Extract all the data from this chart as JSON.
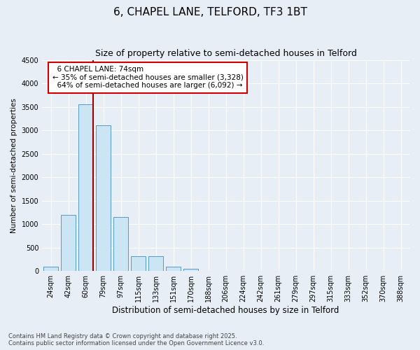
{
  "title": "6, CHAPEL LANE, TELFORD, TF3 1BT",
  "subtitle": "Size of property relative to semi-detached houses in Telford",
  "xlabel": "Distribution of semi-detached houses by size in Telford",
  "ylabel": "Number of semi-detached properties",
  "footnote": "Contains HM Land Registry data © Crown copyright and database right 2025.\nContains public sector information licensed under the Open Government Licence v3.0.",
  "bar_labels": [
    "24sqm",
    "42sqm",
    "60sqm",
    "79sqm",
    "97sqm",
    "115sqm",
    "133sqm",
    "151sqm",
    "170sqm",
    "188sqm",
    "206sqm",
    "224sqm",
    "242sqm",
    "261sqm",
    "279sqm",
    "297sqm",
    "315sqm",
    "333sqm",
    "352sqm",
    "370sqm",
    "388sqm"
  ],
  "bar_values": [
    100,
    1200,
    3550,
    3100,
    1150,
    310,
    310,
    100,
    55,
    5,
    0,
    0,
    0,
    0,
    0,
    0,
    0,
    0,
    0,
    0,
    0
  ],
  "bar_color": "#cce5f5",
  "bar_edge_color": "#5599cc",
  "ylim": [
    0,
    4500
  ],
  "yticks": [
    0,
    500,
    1000,
    1500,
    2000,
    2500,
    3000,
    3500,
    4000,
    4500
  ],
  "property_size": 74,
  "property_label": "6 CHAPEL LANE: 74sqm",
  "pct_smaller": 35,
  "pct_larger": 64,
  "count_smaller": 3328,
  "count_larger": 6092,
  "vline_color": "#990000",
  "background_color": "#e8eef5",
  "grid_color": "#ffffff",
  "title_fontsize": 11,
  "subtitle_fontsize": 9,
  "annotation_fontsize": 7.5,
  "tick_fontsize": 7,
  "ylabel_fontsize": 7.5,
  "xlabel_fontsize": 8.5
}
